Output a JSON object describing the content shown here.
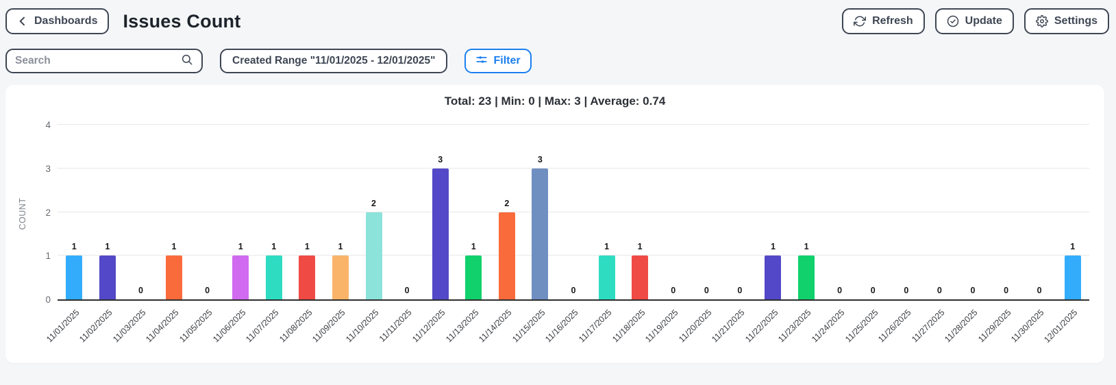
{
  "header": {
    "back_label": "Dashboards",
    "title": "Issues Count",
    "refresh_label": "Refresh",
    "update_label": "Update",
    "settings_label": "Settings"
  },
  "filter_bar": {
    "search_placeholder": "Search",
    "created_range_label": "Created Range \"11/01/2025 - 12/01/2025\"",
    "filter_label": "Filter"
  },
  "colors": {
    "page_bg": "#f4f6f8",
    "panel_bg": "#ffffff",
    "border_dark": "#3e4653",
    "accent_blue": "#1b7ff0",
    "axis_line": "#2e2e2e",
    "grid_line": "#e7e7e7",
    "tick_text": "#666a70",
    "value_label_text": "#191919"
  },
  "chart_data": {
    "type": "bar",
    "title": "Total: 23 | Min: 0 | Max: 3 | Average: 0.74",
    "xlabel": "",
    "ylabel": "COUNT",
    "ylim": [
      0,
      4
    ],
    "yticks": [
      0,
      1,
      2,
      3,
      4
    ],
    "grid": true,
    "legend": false,
    "stats": {
      "total": 23,
      "min": 0,
      "max": 3,
      "average": 0.74
    },
    "categories": [
      "11/01/2025",
      "11/02/2025",
      "11/03/2025",
      "11/04/2025",
      "11/05/2025",
      "11/06/2025",
      "11/07/2025",
      "11/08/2025",
      "11/09/2025",
      "11/10/2025",
      "11/11/2025",
      "11/12/2025",
      "11/13/2025",
      "11/14/2025",
      "11/15/2025",
      "11/16/2025",
      "11/17/2025",
      "11/18/2025",
      "11/19/2025",
      "11/20/2025",
      "11/21/2025",
      "11/22/2025",
      "11/23/2025",
      "11/24/2025",
      "11/25/2025",
      "11/26/2025",
      "11/27/2025",
      "11/28/2025",
      "11/29/2025",
      "11/30/2025",
      "12/01/2025"
    ],
    "values": [
      1,
      1,
      0,
      1,
      0,
      1,
      1,
      1,
      1,
      2,
      0,
      3,
      1,
      2,
      3,
      0,
      1,
      1,
      0,
      0,
      0,
      1,
      1,
      0,
      0,
      0,
      0,
      0,
      0,
      0,
      1
    ],
    "bar_colors": [
      "#33adfb",
      "#5348c7",
      null,
      "#fa6b3c",
      null,
      "#d06bef",
      "#2edcc2",
      "#f04a45",
      "#fab469",
      "#8be3da",
      null,
      "#5348c7",
      "#10d16c",
      "#fa6b3c",
      "#6f8fc1",
      null,
      "#2edcc2",
      "#f04a45",
      null,
      null,
      null,
      "#5348c7",
      "#10d16c",
      null,
      null,
      null,
      null,
      null,
      null,
      null,
      "#33adfb"
    ]
  }
}
